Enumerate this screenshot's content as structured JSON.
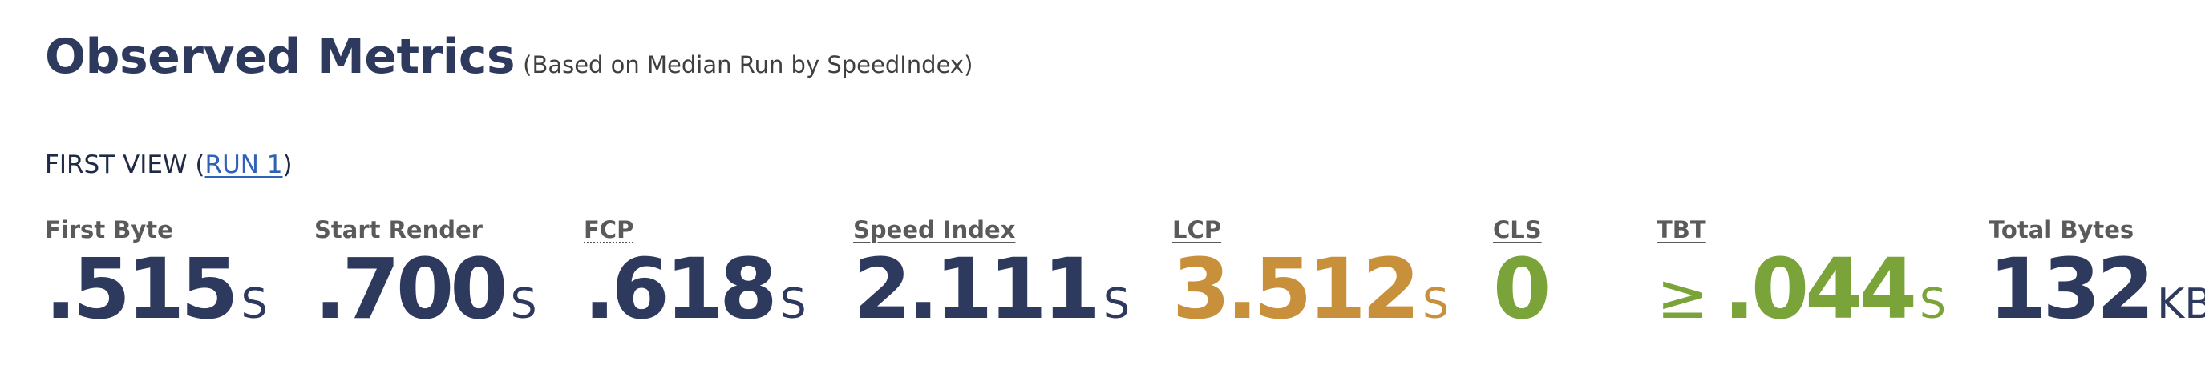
{
  "header": {
    "title": "Observed Metrics",
    "subtitle": "(Based on Median Run by SpeedIndex)"
  },
  "view": {
    "label_prefix": "FIRST VIEW (",
    "run_link": "RUN 1",
    "label_suffix": ")"
  },
  "metrics": [
    {
      "label": "First Byte",
      "value": ".515",
      "unit": "S",
      "color": "#2d3a5e"
    },
    {
      "label": "Start Render",
      "value": ".700",
      "unit": "S",
      "color": "#2d3a5e"
    },
    {
      "label": "FCP",
      "value": ".618",
      "unit": "S",
      "color": "#2d3a5e"
    },
    {
      "label": "Speed Index",
      "value": "2.111",
      "unit": "S",
      "color": "#2d3a5e"
    },
    {
      "label": "LCP",
      "value": "3.512",
      "unit": "S",
      "color": "#c8903a"
    },
    {
      "label": "CLS",
      "value": "0",
      "unit": "",
      "color": "#7aa339"
    },
    {
      "label": "TBT",
      "prefix": "≥",
      "value": ".044",
      "unit": "S",
      "color": "#7aa339"
    },
    {
      "label": "Total Bytes",
      "value": "132",
      "unit": "KB",
      "color": "#2d3a5e"
    }
  ]
}
